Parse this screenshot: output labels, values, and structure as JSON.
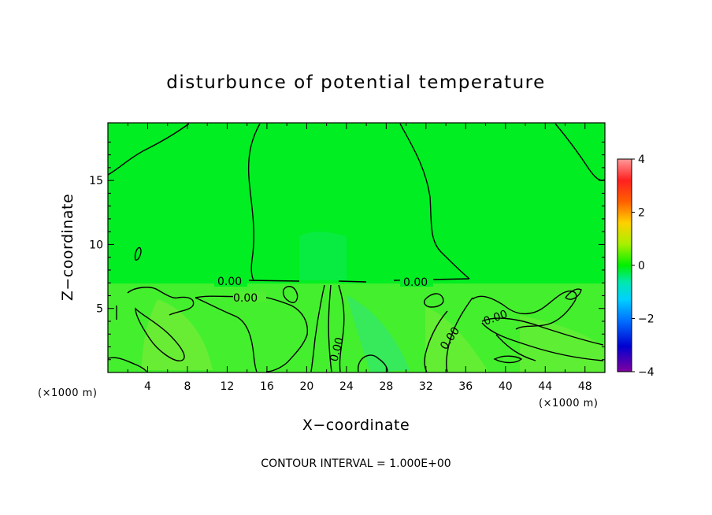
{
  "chart_data": {
    "type": "heatmap",
    "title": "disturbunce of potential temperature",
    "xlabel": "X−coordinate",
    "ylabel": "Z−coordinate",
    "x_unit_left": "(×1000 m)",
    "x_unit_right": "(×1000 m)",
    "xlim": [
      0,
      50
    ],
    "ylim": [
      0,
      19.5
    ],
    "x_ticks": [
      4,
      8,
      12,
      16,
      20,
      24,
      28,
      32,
      36,
      40,
      44,
      48
    ],
    "y_ticks": [
      5,
      10,
      15
    ],
    "colorbar": {
      "range": [
        -4,
        4
      ],
      "ticks": [
        4,
        2,
        0,
        -2,
        -4
      ],
      "colors": [
        "#ff9999",
        "#ff2020",
        "#ff7f00",
        "#ffd800",
        "#b4f000",
        "#00f000",
        "#00e0a0",
        "#00c8ff",
        "#0060ff",
        "#0000c0",
        "#7000a0"
      ]
    },
    "contour_level_label": "0.00",
    "contour_interval_text": "CONTOUR INTERVAL = 1.000E+00",
    "background_color": "#00ee20",
    "lower_layer_color": "#50ee30"
  }
}
